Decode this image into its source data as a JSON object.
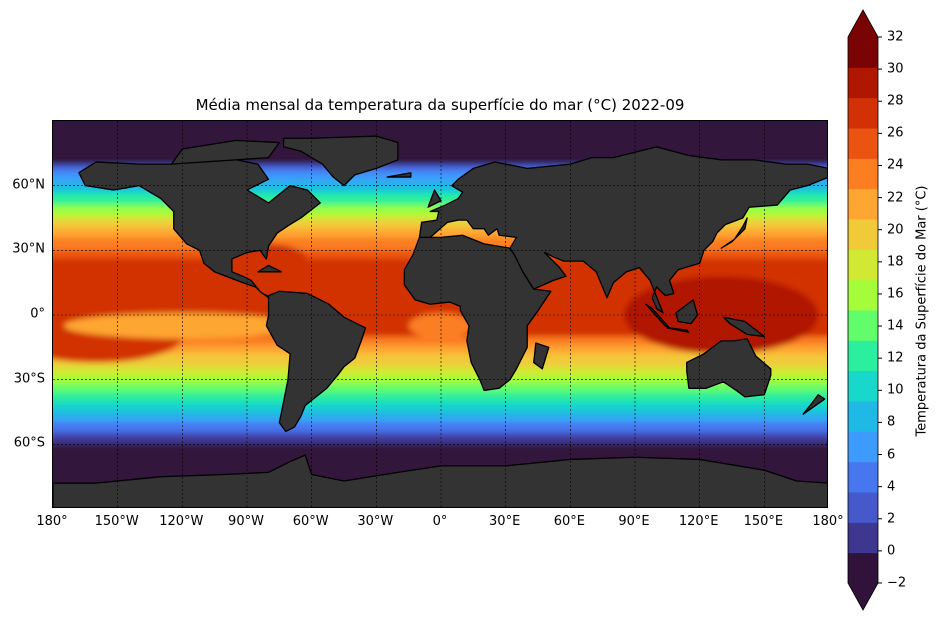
{
  "title": "Média mensal da temperatura da superfície do mar (°C) 2022-09",
  "x_ticks": [
    "180°",
    "150°W",
    "120°W",
    "90°W",
    "60°W",
    "30°W",
    "0°",
    "30°E",
    "60°E",
    "90°E",
    "120°E",
    "150°E",
    "180°"
  ],
  "y_ticks": [
    "60°N",
    "30°N",
    "0°",
    "30°S",
    "60°S"
  ],
  "colorbar": {
    "label": "Temperatura da Superfície do Mar (°C)",
    "ticks": [
      "32",
      "30",
      "28",
      "26",
      "24",
      "22",
      "20",
      "18",
      "16",
      "14",
      "12",
      "10",
      "8",
      "6",
      "4",
      "2",
      "0",
      "−2"
    ],
    "extend": "both",
    "colormap": "turbo",
    "range": [
      -2,
      32
    ],
    "step": 2
  },
  "colors": {
    "land": "#333333",
    "coastline": "#000000",
    "gridlines": "#000000",
    "levels": [
      "#30123b",
      "#3e378f",
      "#4559cb",
      "#4777ef",
      "#3e9bfe",
      "#20b8e4",
      "#18d7cb",
      "#2bee9e",
      "#62fd6a",
      "#a4fc3b",
      "#d2e934",
      "#f1ca3a",
      "#fea632",
      "#fb7e21",
      "#ea5410",
      "#d23105",
      "#b01701",
      "#7a0403"
    ],
    "under": "#30123b",
    "over": "#7a0403"
  },
  "map": {
    "projection": "PlateCarree",
    "lon_range": [
      -180,
      180
    ],
    "lat_range": [
      -90,
      90
    ],
    "gridlines": "dashed",
    "land_mask": "continents",
    "field": "sea surface temperature, monthly mean"
  }
}
